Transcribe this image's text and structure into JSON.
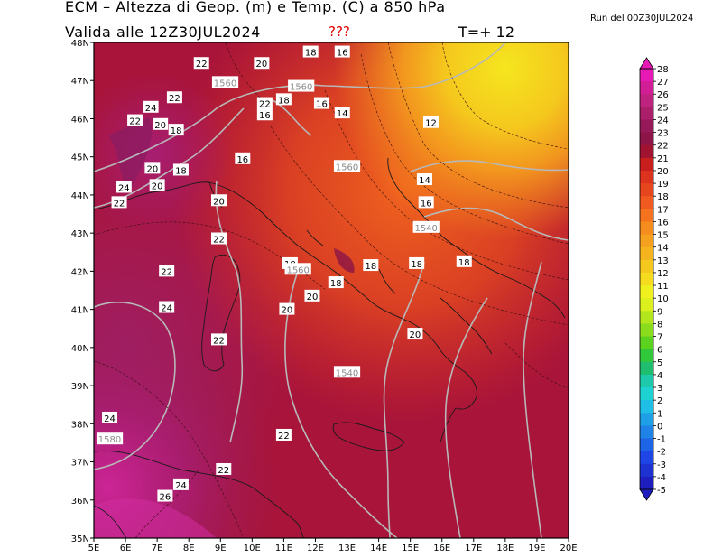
{
  "header": {
    "title": "ECM – Altezza di Geop. (m) e Temp. (C) a 850 hPa",
    "valid": "Valida alle 12Z30JUL2024",
    "unknown": "???",
    "forecast_step": "T=+ 12",
    "run": "Run del 00Z30JUL2024"
  },
  "axes": {
    "lat_labels": [
      "48N",
      "47N",
      "46N",
      "45N",
      "44N",
      "43N",
      "42N",
      "41N",
      "40N",
      "39N",
      "38N",
      "37N",
      "36N",
      "35N"
    ],
    "lon_labels": [
      "5E",
      "6E",
      "7E",
      "8E",
      "9E",
      "10E",
      "11E",
      "12E",
      "13E",
      "14E",
      "15E",
      "16E",
      "17E",
      "18E",
      "19E",
      "20E"
    ]
  },
  "colorbar": {
    "levels": [
      "28",
      "27",
      "26",
      "25",
      "24",
      "23",
      "22",
      "21",
      "20",
      "19",
      "18",
      "17",
      "16",
      "15",
      "14",
      "13",
      "12",
      "11",
      "10",
      "9",
      "8",
      "7",
      "6",
      "5",
      "4",
      "3",
      "2",
      "1",
      "0",
      "-1",
      "-2",
      "-3",
      "-4",
      "-5"
    ],
    "colors": [
      "#e619b4",
      "#d21e96",
      "#be2380",
      "#aa1e6a",
      "#96195a",
      "#8c1446",
      "#a01432",
      "#c81e1e",
      "#dc321e",
      "#e6461e",
      "#f05a1e",
      "#f5731e",
      "#f58c1e",
      "#f5a01e",
      "#f5b41e",
      "#f5c81e",
      "#f5dc1e",
      "#f0f01e",
      "#dcf01e",
      "#b4e61e",
      "#8cdc1e",
      "#5ad21e",
      "#32c83c",
      "#1ebe6e",
      "#1ec8aa",
      "#1ed2d2",
      "#1ebee6",
      "#1ea0e6",
      "#1e82e6",
      "#1e64e6",
      "#1e46e6",
      "#1e32d2",
      "#1e1ebe"
    ]
  },
  "temperature_labels": [
    {
      "text": "18",
      "lon": 11.85,
      "lat": 47.75
    },
    {
      "text": "16",
      "lon": 12.85,
      "lat": 47.75
    },
    {
      "text": "22",
      "lon": 8.4,
      "lat": 47.45
    },
    {
      "text": "20",
      "lon": 10.3,
      "lat": 47.45
    },
    {
      "text": "22",
      "lon": 7.55,
      "lat": 46.55
    },
    {
      "text": "24",
      "lon": 6.8,
      "lat": 46.3
    },
    {
      "text": "22",
      "lon": 6.3,
      "lat": 45.95
    },
    {
      "text": "20",
      "lon": 7.1,
      "lat": 45.85
    },
    {
      "text": "18",
      "lon": 7.6,
      "lat": 45.7
    },
    {
      "text": "22",
      "lon": 10.4,
      "lat": 46.4
    },
    {
      "text": "16",
      "lon": 10.4,
      "lat": 46.1
    },
    {
      "text": "18",
      "lon": 11.0,
      "lat": 46.5
    },
    {
      "text": "16",
      "lon": 12.2,
      "lat": 46.4
    },
    {
      "text": "14",
      "lon": 12.85,
      "lat": 46.15
    },
    {
      "text": "12",
      "lon": 15.65,
      "lat": 45.9
    },
    {
      "text": "16",
      "lon": 9.7,
      "lat": 44.95
    },
    {
      "text": "20",
      "lon": 6.85,
      "lat": 44.7
    },
    {
      "text": "18",
      "lon": 7.75,
      "lat": 44.65
    },
    {
      "text": "14",
      "lon": 15.45,
      "lat": 44.4
    },
    {
      "text": "24",
      "lon": 5.95,
      "lat": 44.2
    },
    {
      "text": "20",
      "lon": 7.0,
      "lat": 44.25
    },
    {
      "text": "22",
      "lon": 5.8,
      "lat": 43.8
    },
    {
      "text": "20",
      "lon": 8.95,
      "lat": 43.85
    },
    {
      "text": "16",
      "lon": 15.5,
      "lat": 43.8
    },
    {
      "text": "22",
      "lon": 8.95,
      "lat": 42.85
    },
    {
      "text": "22",
      "lon": 7.3,
      "lat": 42.0
    },
    {
      "text": "18",
      "lon": 11.2,
      "lat": 42.2
    },
    {
      "text": "18",
      "lon": 13.75,
      "lat": 42.15
    },
    {
      "text": "18",
      "lon": 15.2,
      "lat": 42.2
    },
    {
      "text": "18",
      "lon": 16.7,
      "lat": 42.25
    },
    {
      "text": "18",
      "lon": 12.65,
      "lat": 41.7
    },
    {
      "text": "20",
      "lon": 11.9,
      "lat": 41.35
    },
    {
      "text": "20",
      "lon": 11.1,
      "lat": 41.0
    },
    {
      "text": "24",
      "lon": 7.3,
      "lat": 41.05
    },
    {
      "text": "22",
      "lon": 8.95,
      "lat": 40.2
    },
    {
      "text": "20",
      "lon": 15.15,
      "lat": 40.35
    },
    {
      "text": "24",
      "lon": 5.5,
      "lat": 38.15
    },
    {
      "text": "22",
      "lon": 11.0,
      "lat": 37.7
    },
    {
      "text": "22",
      "lon": 9.1,
      "lat": 36.8
    },
    {
      "text": "24",
      "lon": 7.75,
      "lat": 36.4
    },
    {
      "text": "26",
      "lon": 7.25,
      "lat": 36.1
    }
  ],
  "geopotential_labels": [
    {
      "text": "1560",
      "lon": 9.15,
      "lat": 46.95
    },
    {
      "text": "1560",
      "lon": 11.55,
      "lat": 46.85
    },
    {
      "text": "1560",
      "lon": 13.0,
      "lat": 44.75
    },
    {
      "text": "1540",
      "lon": 15.5,
      "lat": 43.15
    },
    {
      "text": "1560",
      "lon": 11.45,
      "lat": 42.05
    },
    {
      "text": "1540",
      "lon": 13.0,
      "lat": 39.35
    },
    {
      "text": "1580",
      "lon": 5.5,
      "lat": 37.6
    }
  ]
}
